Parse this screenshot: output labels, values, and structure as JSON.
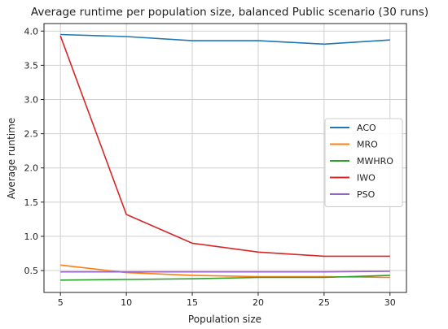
{
  "chart_data": {
    "type": "line",
    "title": "Average runtime per population size, balanced Public scenario (30 runs)",
    "xlabel": "Population size",
    "ylabel": "Average runtime",
    "x": [
      5,
      10,
      15,
      20,
      25,
      30
    ],
    "xticks": [
      "5",
      "10",
      "15",
      "20",
      "25",
      "30"
    ],
    "yticks": [
      "0.5",
      "1.0",
      "1.5",
      "2.0",
      "2.5",
      "3.0",
      "3.5",
      "4.0"
    ],
    "xlim": [
      3.75,
      31.25
    ],
    "ylim": [
      0.18,
      4.11
    ],
    "grid": true,
    "legend_position": "center-right",
    "series": [
      {
        "name": "ACO",
        "color": "#1f77b4",
        "values": [
          3.95,
          3.92,
          3.86,
          3.86,
          3.81,
          3.87
        ]
      },
      {
        "name": "MRO",
        "color": "#ff7f0e",
        "values": [
          0.58,
          0.47,
          0.43,
          0.41,
          0.41,
          0.4
        ]
      },
      {
        "name": "MWHRO",
        "color": "#2ca02c",
        "values": [
          0.36,
          0.37,
          0.38,
          0.4,
          0.4,
          0.43
        ]
      },
      {
        "name": "IWO",
        "color": "#d62728",
        "values": [
          3.93,
          1.32,
          0.9,
          0.77,
          0.71,
          0.71
        ]
      },
      {
        "name": "PSO",
        "color": "#9467bd",
        "values": [
          0.48,
          0.48,
          0.48,
          0.48,
          0.48,
          0.49
        ]
      }
    ]
  }
}
